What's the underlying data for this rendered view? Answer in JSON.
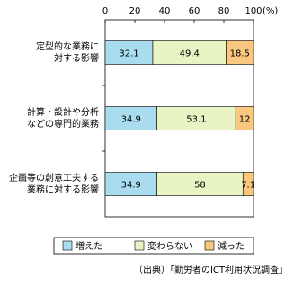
{
  "chart_data": {
    "type": "stacked-bar-horizontal",
    "categories": [
      "定型的な業務に\n対する影響",
      "計算・設計や分析\nなどの専門的業務",
      "企画等の創意工夫する\n業務に対する影響"
    ],
    "series": [
      {
        "name": "増えた",
        "color": "#a8dcee",
        "values": [
          32.1,
          34.9,
          34.9
        ]
      },
      {
        "name": "変わらない",
        "color": "#e8f4c4",
        "values": [
          49.4,
          53.1,
          58.0
        ]
      },
      {
        "name": "減った",
        "color": "#f9c77e",
        "values": [
          18.5,
          12.0,
          7.1
        ]
      }
    ],
    "xlim": [
      0,
      100
    ],
    "xticks": [
      0,
      20,
      40,
      60,
      80,
      100
    ],
    "x_unit": "(%)",
    "source": "（出典）「勤労者のICT利用状況調査」"
  }
}
